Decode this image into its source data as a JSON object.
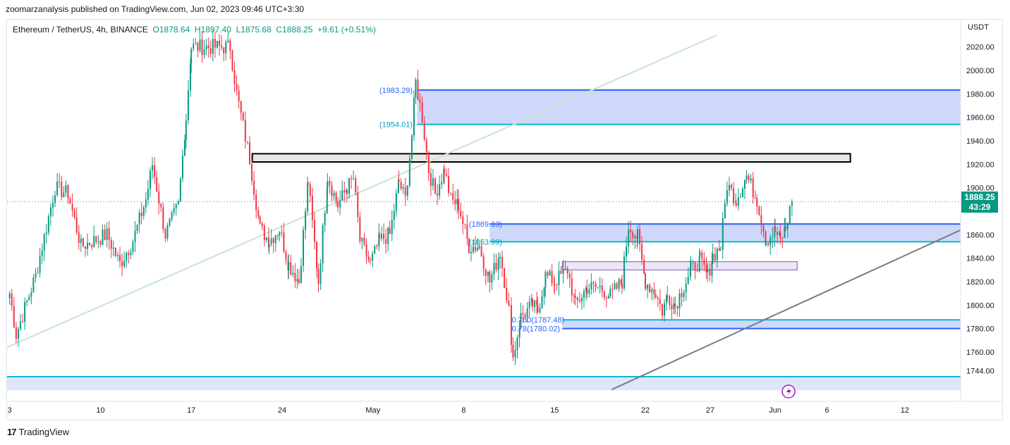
{
  "header": {
    "published": "zoomarzanalysis published on TradingView.com, Jun 02, 2023 09:46 UTC+3:30"
  },
  "legend": {
    "symbol": "Ethereum / TetherUS, 4h, BINANCE",
    "open": "O1878.64",
    "high": "H1897.40",
    "low": "L1875.68",
    "close": "C1888.25",
    "change": "+9.61 (+0.51%)"
  },
  "price_axis": {
    "unit": "USDT"
  },
  "last_price": {
    "value": "1888.25",
    "countdown": "43:29"
  },
  "footer": {
    "brand": "TradingView",
    "logo_text": "17"
  },
  "colors": {
    "up": "#089981",
    "down": "#f23645",
    "zone_fill": "#cfd8fb",
    "zone_border": "#2962ff",
    "zone_line": "#00bcd4",
    "gray_box": "#e8e8e8",
    "purple_box": "#ede7f6",
    "trend_gray": "#787b86",
    "trend_green": "#c8e6c9"
  },
  "chart_data": {
    "type": "candlestick",
    "title": "Ethereum / TetherUS, 4h, BINANCE",
    "ylabel": "USDT",
    "ylim": [
      1730,
      2030
    ],
    "y_ticks": [
      "2020.00",
      "2000.00",
      "1980.00",
      "1960.00",
      "1940.00",
      "1920.00",
      "1900.00",
      "1860.00",
      "1840.00",
      "1820.00",
      "1800.00",
      "1780.00",
      "1760.00",
      "1744.00"
    ],
    "x_ticks": [
      "3",
      "10",
      "17",
      "24",
      "May",
      "8",
      "15",
      "22",
      "27",
      "Jun",
      "6",
      "12"
    ],
    "x_tick_days": [
      3,
      10,
      17,
      24,
      31,
      38,
      45,
      52,
      57,
      62,
      66,
      72
    ],
    "x_range_days": [
      2.8,
      76.3
    ],
    "last_candle_day": 63.3,
    "current_price": 1888.25,
    "price_labels": [
      {
        "text": "(1983.29)",
        "price": 1983.29,
        "day": 31.5
      },
      {
        "text": "(1954.01)",
        "price": 1954.01,
        "day": 31.5
      },
      {
        "text": "(1869.13)",
        "price": 1869.13,
        "day": 38.4
      },
      {
        "text": "(1853.99)",
        "price": 1853.99,
        "day": 38.4
      },
      {
        "text": "0.780(1787.48)",
        "price": 1787.48,
        "day": 41.7
      },
      {
        "text": "0.78(1780.02)",
        "price": 1780.02,
        "day": 41.7
      }
    ],
    "zones": [
      {
        "name": "resistance-zone",
        "top": 1983.29,
        "bottom": 1954.01,
        "from_day": 34.4,
        "to_day": 76.3
      },
      {
        "name": "gray-zone",
        "top": 1929,
        "bottom": 1922,
        "from_day": 21.7,
        "to_day": 67.8
      },
      {
        "name": "mid-zone",
        "top": 1869.13,
        "bottom": 1853.99,
        "from_day": 40.0,
        "to_day": 76.3
      },
      {
        "name": "purple-zone",
        "top": 1837,
        "bottom": 1830,
        "from_day": 45.6,
        "to_day": 63.7
      },
      {
        "name": "fib-zone",
        "top": 1787.48,
        "bottom": 1780.02,
        "from_day": 45.6,
        "to_day": 76.3
      },
      {
        "name": "bottom-zone",
        "top": 1739,
        "bottom": 1728,
        "from_day": 2.8,
        "to_day": 76.3
      }
    ],
    "trendlines": [
      {
        "name": "green-rising-trendline",
        "p1": [
          2.8,
          1764
        ],
        "p2": [
          57.5,
          2030
        ]
      },
      {
        "name": "gray-rising-trendline",
        "p1": [
          49.4,
          1728
        ],
        "p2": [
          76.3,
          1864
        ]
      }
    ],
    "anchors": [
      [
        3.0,
        1810
      ],
      [
        3.5,
        1775
      ],
      [
        5.0,
        1825
      ],
      [
        6.5,
        1900
      ],
      [
        7.5,
        1895
      ],
      [
        8.5,
        1850
      ],
      [
        9.5,
        1855
      ],
      [
        10.5,
        1860
      ],
      [
        11.5,
        1835
      ],
      [
        12.5,
        1855
      ],
      [
        13.5,
        1890
      ],
      [
        14.0,
        1920
      ],
      [
        15.0,
        1860
      ],
      [
        16.0,
        1885
      ],
      [
        16.6,
        1960
      ],
      [
        17.0,
        2020
      ],
      [
        20.0,
        2020
      ],
      [
        20.5,
        1980
      ],
      [
        21.5,
        1925
      ],
      [
        22.3,
        1865
      ],
      [
        23.0,
        1855
      ],
      [
        23.8,
        1865
      ],
      [
        24.5,
        1835
      ],
      [
        25.3,
        1820
      ],
      [
        26.0,
        1905
      ],
      [
        26.8,
        1820
      ],
      [
        27.5,
        1910
      ],
      [
        28.3,
        1885
      ],
      [
        29.0,
        1900
      ],
      [
        29.5,
        1908
      ],
      [
        30.0,
        1855
      ],
      [
        30.8,
        1835
      ],
      [
        31.5,
        1855
      ],
      [
        32.3,
        1860
      ],
      [
        33.0,
        1905
      ],
      [
        33.5,
        1890
      ],
      [
        34.0,
        1945
      ],
      [
        34.3,
        1990
      ],
      [
        34.8,
        1960
      ],
      [
        35.3,
        1915
      ],
      [
        35.8,
        1895
      ],
      [
        36.5,
        1915
      ],
      [
        37.0,
        1890
      ],
      [
        37.6,
        1885
      ],
      [
        38.4,
        1850
      ],
      [
        39.2,
        1850
      ],
      [
        40.0,
        1820
      ],
      [
        40.8,
        1845
      ],
      [
        41.5,
        1795
      ],
      [
        41.8,
        1755
      ],
      [
        42.4,
        1790
      ],
      [
        43.3,
        1800
      ],
      [
        43.7,
        1795
      ],
      [
        44.3,
        1825
      ],
      [
        45.0,
        1820
      ],
      [
        46.0,
        1830
      ],
      [
        46.6,
        1800
      ],
      [
        47.5,
        1815
      ],
      [
        48.5,
        1815
      ],
      [
        49.3,
        1808
      ],
      [
        50.2,
        1820
      ],
      [
        50.7,
        1868
      ],
      [
        51.4,
        1858
      ],
      [
        52.0,
        1820
      ],
      [
        52.8,
        1810
      ],
      [
        53.3,
        1795
      ],
      [
        53.7,
        1808
      ],
      [
        54.3,
        1800
      ],
      [
        55.5,
        1830
      ],
      [
        56.2,
        1838
      ],
      [
        56.8,
        1825
      ],
      [
        57.2,
        1842
      ],
      [
        57.8,
        1850
      ],
      [
        58.3,
        1903
      ],
      [
        59.0,
        1890
      ],
      [
        59.8,
        1910
      ],
      [
        60.6,
        1890
      ],
      [
        61.3,
        1855
      ],
      [
        62.0,
        1863
      ],
      [
        62.4,
        1855
      ],
      [
        62.8,
        1865
      ],
      [
        63.3,
        1888.25
      ]
    ]
  }
}
